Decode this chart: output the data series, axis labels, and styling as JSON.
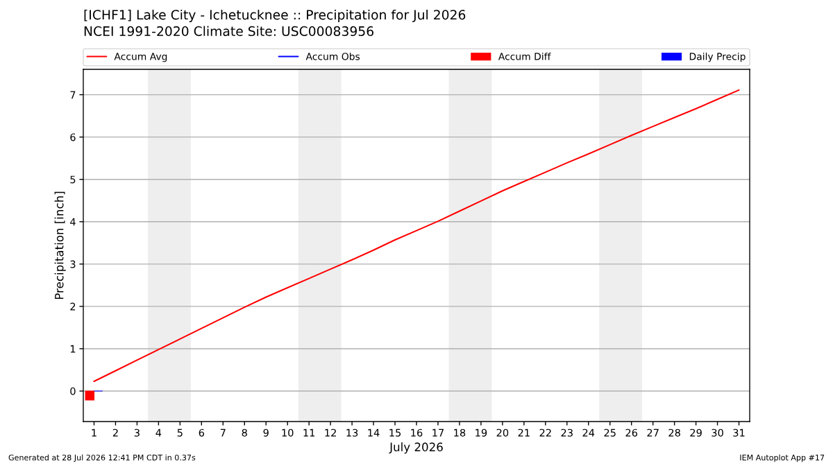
{
  "chart_data": {
    "type": "line",
    "title": "[ICHF1] Lake City - Ichetucknee :: Precipitation for Jul 2026",
    "subtitle": "NCEI 1991-2020 Climate Site: USC00083956",
    "xlabel": "July 2026",
    "ylabel": "Precipitation [inch]",
    "x": [
      1,
      2,
      3,
      4,
      5,
      6,
      7,
      8,
      9,
      10,
      11,
      12,
      13,
      14,
      15,
      16,
      17,
      18,
      19,
      20,
      21,
      22,
      23,
      24,
      25,
      26,
      27,
      28,
      29,
      30,
      31
    ],
    "series": [
      {
        "name": "Accum Avg",
        "color": "#ff0000",
        "values": [
          0.23,
          0.48,
          0.73,
          0.98,
          1.23,
          1.48,
          1.73,
          1.98,
          2.22,
          2.44,
          2.66,
          2.88,
          3.1,
          3.33,
          3.57,
          3.79,
          4.01,
          4.25,
          4.49,
          4.73,
          4.95,
          5.17,
          5.39,
          5.6,
          5.82,
          6.04,
          6.25,
          6.46,
          6.67,
          6.89,
          7.11
        ]
      },
      {
        "name": "Accum Obs",
        "color": "#0000ff",
        "values": [
          null,
          null,
          null,
          null,
          null,
          null,
          null,
          null,
          null,
          null,
          null,
          null,
          null,
          null,
          null,
          null,
          null,
          null,
          null,
          null,
          null,
          null,
          null,
          null,
          null,
          null,
          null,
          null,
          null,
          null,
          null
        ]
      },
      {
        "name": "Accum Diff",
        "type": "bar",
        "color": "#ff0000",
        "values": [
          -0.21,
          null,
          null,
          null,
          null,
          null,
          null,
          null,
          null,
          null,
          null,
          null,
          null,
          null,
          null,
          null,
          null,
          null,
          null,
          null,
          null,
          null,
          null,
          null,
          null,
          null,
          null,
          null,
          null,
          null,
          null
        ]
      },
      {
        "name": "Daily Precip",
        "type": "bar",
        "color": "#0000ff",
        "values": [
          0,
          null,
          null,
          null,
          null,
          null,
          null,
          null,
          null,
          null,
          null,
          null,
          null,
          null,
          null,
          null,
          null,
          null,
          null,
          null,
          null,
          null,
          null,
          null,
          null,
          null,
          null,
          null,
          null,
          null,
          null
        ]
      }
    ],
    "xlim": [
      0.5,
      31.5
    ],
    "xticks": [
      1,
      2,
      3,
      4,
      5,
      6,
      7,
      8,
      9,
      10,
      11,
      12,
      13,
      14,
      15,
      16,
      17,
      18,
      19,
      20,
      21,
      22,
      23,
      24,
      25,
      26,
      27,
      28,
      29,
      30,
      31
    ],
    "ylim": [
      -0.72,
      7.6
    ],
    "yticks": [
      0,
      1,
      2,
      3,
      4,
      5,
      6,
      7
    ],
    "grid": "y",
    "legend": "top",
    "bands": [
      {
        "axis": "x",
        "from": 3.5,
        "to": 5.5,
        "color": "#eeeeee"
      },
      {
        "axis": "x",
        "from": 10.5,
        "to": 12.5,
        "color": "#eeeeee"
      },
      {
        "axis": "x",
        "from": 17.5,
        "to": 19.5,
        "color": "#eeeeee"
      },
      {
        "axis": "x",
        "from": 24.5,
        "to": 26.5,
        "color": "#eeeeee"
      }
    ],
    "annotations": [
      "Generated at 28 Jul 2026 12:41 PM CDT in 0.37s",
      "IEM Autoplot App #17"
    ]
  }
}
